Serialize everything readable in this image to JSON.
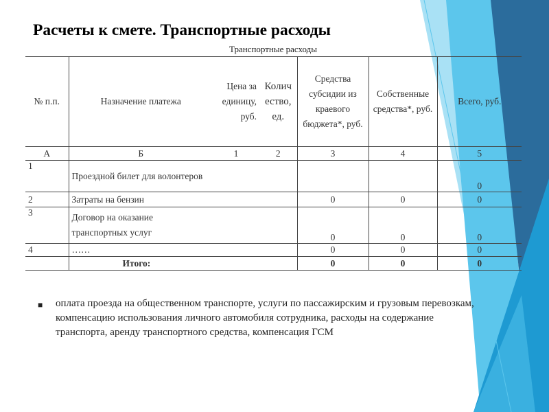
{
  "slide": {
    "title": "Расчеты к смете. Транспортные расходы",
    "colors": {
      "dark_blue": "#2b6c9c",
      "mid_blue": "#1e9ad2",
      "light_blue": "#5cc6ec",
      "pale_blue": "#a9e1f5"
    }
  },
  "table": {
    "caption": "Транспортные расходы",
    "headers": [
      "№ п.п.",
      "Назначение платежа",
      "Цена за единицу, руб.",
      "Количество, ед.",
      "Средства субсидии из краевого бюджета*, руб.",
      "Собственные средства*, руб.",
      "Всего, руб."
    ],
    "column_codes": [
      "А",
      "Б",
      "1",
      "2",
      "3",
      "4",
      "5"
    ],
    "rows": [
      {
        "num": "1",
        "name": "Проездной билет для волонтеров",
        "price": "",
        "qty": "",
        "subsidy": "",
        "own": "",
        "total": "0"
      },
      {
        "num": "2",
        "name": "Затраты на бензин",
        "price": "",
        "qty": "",
        "subsidy": "0",
        "own": "0",
        "total": "0"
      },
      {
        "num": "3",
        "name": "Договор на оказание транспортных услуг",
        "price": "",
        "qty": "",
        "subsidy": "0",
        "own": "0",
        "total": "0"
      },
      {
        "num": "4",
        "name": "……",
        "price": "",
        "qty": "",
        "subsidy": "0",
        "own": "0",
        "total": "0"
      }
    ],
    "total": {
      "label": "Итого:",
      "subsidy": "0",
      "own": "0",
      "total": "0"
    }
  },
  "bullets": [
    "оплата проезда на общественном транспорте, услуги по пассажирским и грузовым перевозкам, компенсацию использования личного автомобиля сотрудника, расходы на содержание транспорта, аренду транспортного средства, компенсация ГСМ"
  ],
  "icons": {
    "bullet": "bullet-square-icon"
  }
}
